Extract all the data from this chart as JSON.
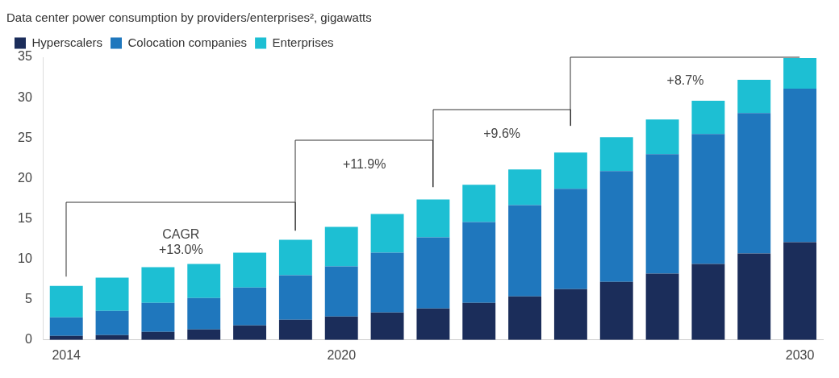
{
  "chart_data": {
    "type": "bar",
    "stacked": true,
    "title": "Data center power consumption by providers/enterprises², gigawatts",
    "categories": [
      "2014",
      null,
      null,
      null,
      null,
      null,
      "2020",
      null,
      null,
      null,
      null,
      null,
      null,
      null,
      null,
      null,
      "2030"
    ],
    "series": [
      {
        "name": "Hyperscalers",
        "color": "#1b2d5a",
        "values": [
          0.5,
          0.6,
          1.0,
          1.3,
          1.8,
          2.5,
          2.9,
          3.4,
          3.9,
          4.6,
          5.4,
          6.3,
          7.2,
          8.2,
          9.4,
          10.7,
          12.1
        ]
      },
      {
        "name": "Colocation companies",
        "color": "#1f77bd",
        "values": [
          2.3,
          3.0,
          3.6,
          3.9,
          4.7,
          5.5,
          6.2,
          7.4,
          8.8,
          10.0,
          11.3,
          12.4,
          13.7,
          14.8,
          16.1,
          17.4,
          19.0
        ]
      },
      {
        "name": "Enterprises",
        "color": "#1dbfd3",
        "values": [
          3.9,
          4.1,
          4.4,
          4.2,
          4.3,
          4.4,
          4.9,
          4.8,
          4.7,
          4.6,
          4.4,
          4.5,
          4.2,
          4.3,
          4.1,
          4.1,
          3.8
        ]
      }
    ],
    "ylim": [
      0,
      35
    ],
    "yticks": [
      0,
      5,
      10,
      15,
      20,
      25,
      30,
      35
    ],
    "grid": false,
    "legend": "top left",
    "annotations": [
      "CAGR\n+13.0%",
      "+11.9%",
      "+9.6%",
      "+8.7%"
    ]
  }
}
